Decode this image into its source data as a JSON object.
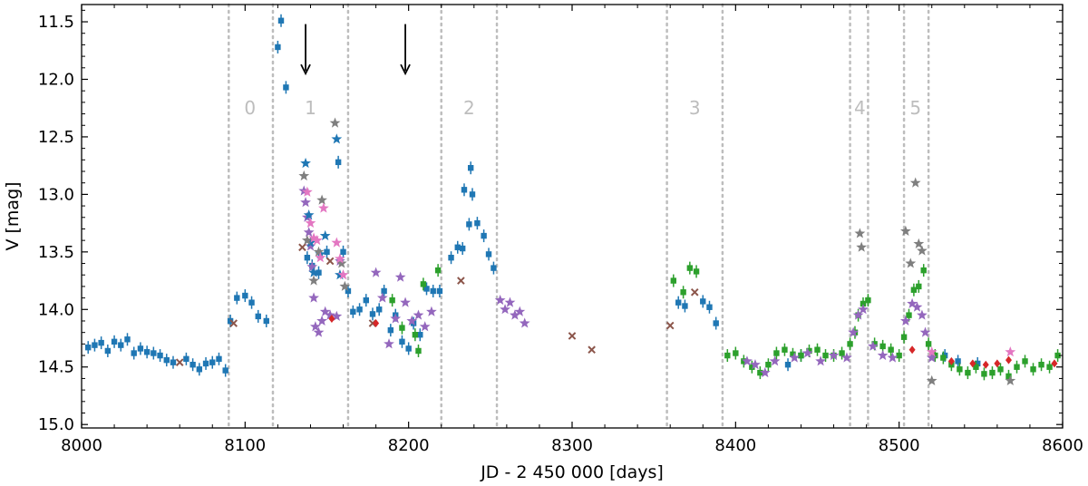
{
  "colors": {
    "blue": "#1f77b4",
    "green": "#2ca02c",
    "purple": "#9467bd",
    "gray": "#7f7f7f",
    "pink": "#e377c2",
    "brown": "#8c564b",
    "red": "#d62728",
    "dotted": "#bdbdbd"
  },
  "chart_data": {
    "type": "scatter",
    "xlabel": "JD - 2 450 000 [days]",
    "ylabel": "V [mag]",
    "xlim": [
      8000,
      8600
    ],
    "ylim": [
      15.03,
      11.35
    ],
    "x_ticks": [
      "8000",
      "8100",
      "8200",
      "8300",
      "8400",
      "8500",
      "8600"
    ],
    "y_ticks": [
      "11.5",
      "12.0",
      "12.5",
      "13.0",
      "13.5",
      "14.0",
      "14.5",
      "15.0"
    ],
    "x_tick_values": [
      8000,
      8100,
      8200,
      8300,
      8400,
      8500,
      8600
    ],
    "y_tick_values": [
      11.5,
      12.0,
      12.5,
      13.0,
      13.5,
      14.0,
      14.5,
      15.0
    ],
    "segment_boundaries": [
      8090,
      8117,
      8163,
      8220,
      8254,
      8358,
      8392,
      8470,
      8481,
      8503,
      8518
    ],
    "segment_labels": [
      {
        "text": "0",
        "x": 8103
      },
      {
        "text": "1",
        "x": 8140
      },
      {
        "text": "2",
        "x": 8237
      },
      {
        "text": "3",
        "x": 8375
      },
      {
        "text": "4",
        "x": 8476
      },
      {
        "text": "5",
        "x": 8510
      }
    ],
    "segment_label_y": 12.25,
    "arrows": [
      {
        "x": 8137,
        "from": 11.52,
        "to": 11.95
      },
      {
        "x": 8198,
        "from": 11.52,
        "to": 11.95
      }
    ],
    "series": [
      {
        "name": "blue squares",
        "marker": "square",
        "color": "blue",
        "points": [
          [
            8004,
            14.33
          ],
          [
            8008,
            14.31
          ],
          [
            8012,
            14.29
          ],
          [
            8016,
            14.36
          ],
          [
            8020,
            14.28
          ],
          [
            8024,
            14.31
          ],
          [
            8028,
            14.26
          ],
          [
            8032,
            14.38
          ],
          [
            8036,
            14.34
          ],
          [
            8040,
            14.37
          ],
          [
            8044,
            14.38
          ],
          [
            8048,
            14.4
          ],
          [
            8052,
            14.44
          ],
          [
            8056,
            14.46
          ],
          [
            8064,
            14.43
          ],
          [
            8068,
            14.48
          ],
          [
            8072,
            14.52
          ],
          [
            8076,
            14.47
          ],
          [
            8080,
            14.46
          ],
          [
            8084,
            14.43
          ],
          [
            8088,
            14.53
          ],
          [
            8091,
            14.1
          ],
          [
            8095,
            13.9
          ],
          [
            8100,
            13.88
          ],
          [
            8104,
            13.94
          ],
          [
            8108,
            14.06
          ],
          [
            8113,
            14.1
          ],
          [
            8120,
            11.72
          ],
          [
            8122,
            11.49
          ],
          [
            8125,
            12.07
          ],
          [
            8138,
            13.55
          ],
          [
            8141,
            13.62
          ],
          [
            8145,
            13.68
          ],
          [
            8150,
            13.5
          ],
          [
            8157,
            12.72
          ],
          [
            8160,
            13.5
          ],
          [
            8163,
            13.84
          ],
          [
            8166,
            14.02
          ],
          [
            8170,
            14.0
          ],
          [
            8174,
            13.92
          ],
          [
            8178,
            14.04
          ],
          [
            8182,
            14.0
          ],
          [
            8185,
            13.84
          ],
          [
            8189,
            14.18
          ],
          [
            8192,
            14.05
          ],
          [
            8196,
            14.28
          ],
          [
            8200,
            14.34
          ],
          [
            8203,
            14.12
          ],
          [
            8207,
            14.22
          ],
          [
            8211,
            13.82
          ],
          [
            8215,
            13.84
          ],
          [
            8219,
            13.84
          ],
          [
            8226,
            13.55
          ],
          [
            8230,
            13.46
          ],
          [
            8233,
            13.47
          ],
          [
            8234,
            12.96
          ],
          [
            8237,
            13.26
          ],
          [
            8238,
            12.77
          ],
          [
            8239,
            13.0
          ],
          [
            8242,
            13.25
          ],
          [
            8246,
            13.36
          ],
          [
            8249,
            13.52
          ],
          [
            8252,
            13.64
          ],
          [
            8365,
            13.94
          ],
          [
            8369,
            13.97
          ],
          [
            8380,
            13.93
          ],
          [
            8384,
            13.98
          ],
          [
            8388,
            14.12
          ],
          [
            8432,
            14.48
          ],
          [
            8440,
            14.4
          ],
          [
            8528,
            14.4
          ],
          [
            8536,
            14.45
          ],
          [
            8548,
            14.47
          ]
        ]
      },
      {
        "name": "green squares",
        "marker": "square",
        "color": "green",
        "points": [
          [
            8190,
            13.92
          ],
          [
            8196,
            14.16
          ],
          [
            8204,
            14.22
          ],
          [
            8206,
            14.36
          ],
          [
            8209,
            13.78
          ],
          [
            8218,
            13.66
          ],
          [
            8362,
            13.75
          ],
          [
            8368,
            13.85
          ],
          [
            8372,
            13.64
          ],
          [
            8376,
            13.67
          ],
          [
            8395,
            14.4
          ],
          [
            8400,
            14.38
          ],
          [
            8405,
            14.45
          ],
          [
            8410,
            14.5
          ],
          [
            8415,
            14.55
          ],
          [
            8420,
            14.48
          ],
          [
            8425,
            14.38
          ],
          [
            8430,
            14.35
          ],
          [
            8435,
            14.39
          ],
          [
            8440,
            14.4
          ],
          [
            8445,
            14.36
          ],
          [
            8450,
            14.35
          ],
          [
            8455,
            14.4
          ],
          [
            8460,
            14.4
          ],
          [
            8465,
            14.38
          ],
          [
            8470,
            14.3
          ],
          [
            8473,
            14.2
          ],
          [
            8475,
            14.05
          ],
          [
            8478,
            13.95
          ],
          [
            8481,
            13.92
          ],
          [
            8485,
            14.3
          ],
          [
            8490,
            14.32
          ],
          [
            8495,
            14.35
          ],
          [
            8500,
            14.4
          ],
          [
            8503,
            14.24
          ],
          [
            8506,
            14.05
          ],
          [
            8509,
            13.83
          ],
          [
            8512,
            13.8
          ],
          [
            8515,
            13.66
          ],
          [
            8518,
            14.3
          ],
          [
            8522,
            14.4
          ],
          [
            8527,
            14.42
          ],
          [
            8532,
            14.48
          ],
          [
            8537,
            14.52
          ],
          [
            8542,
            14.55
          ],
          [
            8547,
            14.5
          ],
          [
            8552,
            14.56
          ],
          [
            8557,
            14.55
          ],
          [
            8562,
            14.52
          ],
          [
            8567,
            14.58
          ],
          [
            8572,
            14.5
          ],
          [
            8577,
            14.45
          ],
          [
            8582,
            14.52
          ],
          [
            8587,
            14.48
          ],
          [
            8592,
            14.5
          ],
          [
            8597,
            14.4
          ]
        ]
      },
      {
        "name": "purple stars",
        "marker": "star",
        "color": "purple",
        "points": [
          [
            8136,
            12.97
          ],
          [
            8137,
            13.07
          ],
          [
            8138,
            13.2
          ],
          [
            8139,
            13.33
          ],
          [
            8140,
            13.45
          ],
          [
            8141,
            13.63
          ],
          [
            8142,
            13.9
          ],
          [
            8143,
            14.15
          ],
          [
            8145,
            14.2
          ],
          [
            8147,
            14.1
          ],
          [
            8149,
            14.02
          ],
          [
            8152,
            14.05
          ],
          [
            8156,
            14.06
          ],
          [
            8158,
            13.58
          ],
          [
            8180,
            13.68
          ],
          [
            8184,
            13.9
          ],
          [
            8188,
            14.3
          ],
          [
            8192,
            14.08
          ],
          [
            8195,
            13.72
          ],
          [
            8198,
            13.94
          ],
          [
            8202,
            14.1
          ],
          [
            8206,
            14.05
          ],
          [
            8210,
            14.15
          ],
          [
            8214,
            14.02
          ],
          [
            8256,
            13.92
          ],
          [
            8259,
            14.0
          ],
          [
            8262,
            13.94
          ],
          [
            8265,
            14.05
          ],
          [
            8268,
            14.02
          ],
          [
            8271,
            14.12
          ],
          [
            8407,
            14.45
          ],
          [
            8412,
            14.48
          ],
          [
            8418,
            14.55
          ],
          [
            8424,
            14.45
          ],
          [
            8436,
            14.42
          ],
          [
            8444,
            14.38
          ],
          [
            8452,
            14.45
          ],
          [
            8460,
            14.4
          ],
          [
            8468,
            14.42
          ],
          [
            8472,
            14.2
          ],
          [
            8475,
            14.05
          ],
          [
            8478,
            14.0
          ],
          [
            8484,
            14.32
          ],
          [
            8490,
            14.4
          ],
          [
            8496,
            14.42
          ],
          [
            8504,
            14.1
          ],
          [
            8508,
            13.95
          ],
          [
            8511,
            13.98
          ],
          [
            8514,
            14.05
          ],
          [
            8516,
            14.2
          ],
          [
            8520,
            14.42
          ]
        ]
      },
      {
        "name": "blue stars",
        "marker": "star",
        "color": "blue",
        "points": [
          [
            8137,
            12.73
          ],
          [
            8139,
            13.18
          ],
          [
            8140,
            13.42
          ],
          [
            8142,
            13.68
          ],
          [
            8146,
            13.52
          ],
          [
            8149,
            13.36
          ],
          [
            8156,
            12.52
          ],
          [
            8158,
            13.7
          ]
        ]
      },
      {
        "name": "gray stars",
        "marker": "star",
        "color": "gray",
        "points": [
          [
            8136,
            12.84
          ],
          [
            8138,
            13.4
          ],
          [
            8142,
            13.75
          ],
          [
            8145,
            13.5
          ],
          [
            8147,
            13.05
          ],
          [
            8155,
            12.38
          ],
          [
            8159,
            13.6
          ],
          [
            8161,
            13.8
          ],
          [
            8476,
            13.34
          ],
          [
            8477,
            13.46
          ],
          [
            8504,
            13.32
          ],
          [
            8507,
            13.6
          ],
          [
            8510,
            12.9
          ],
          [
            8512,
            13.43
          ],
          [
            8514,
            13.49
          ],
          [
            8520,
            14.62
          ],
          [
            8568,
            14.62
          ]
        ]
      },
      {
        "name": "pink stars",
        "marker": "star",
        "color": "pink",
        "points": [
          [
            8138,
            12.98
          ],
          [
            8140,
            13.25
          ],
          [
            8142,
            13.38
          ],
          [
            8144,
            13.4
          ],
          [
            8146,
            13.55
          ],
          [
            8148,
            13.12
          ],
          [
            8156,
            13.42
          ],
          [
            8158,
            13.56
          ],
          [
            8160,
            13.7
          ],
          [
            8520,
            14.37
          ],
          [
            8568,
            14.37
          ]
        ]
      },
      {
        "name": "brown crosses",
        "marker": "x",
        "color": "brown",
        "points": [
          [
            8060,
            14.46
          ],
          [
            8093,
            14.12
          ],
          [
            8135,
            13.46
          ],
          [
            8152,
            13.58
          ],
          [
            8178,
            14.12
          ],
          [
            8232,
            13.75
          ],
          [
            8300,
            14.23
          ],
          [
            8312,
            14.35
          ],
          [
            8360,
            14.14
          ],
          [
            8375,
            13.85
          ]
        ]
      },
      {
        "name": "red diamonds",
        "marker": "diamond",
        "color": "red",
        "points": [
          [
            8153,
            14.08
          ],
          [
            8180,
            14.12
          ],
          [
            8508,
            14.35
          ],
          [
            8532,
            14.45
          ],
          [
            8545,
            14.47
          ],
          [
            8553,
            14.48
          ],
          [
            8560,
            14.47
          ],
          [
            8567,
            14.44
          ],
          [
            8595,
            14.47
          ]
        ]
      }
    ]
  }
}
